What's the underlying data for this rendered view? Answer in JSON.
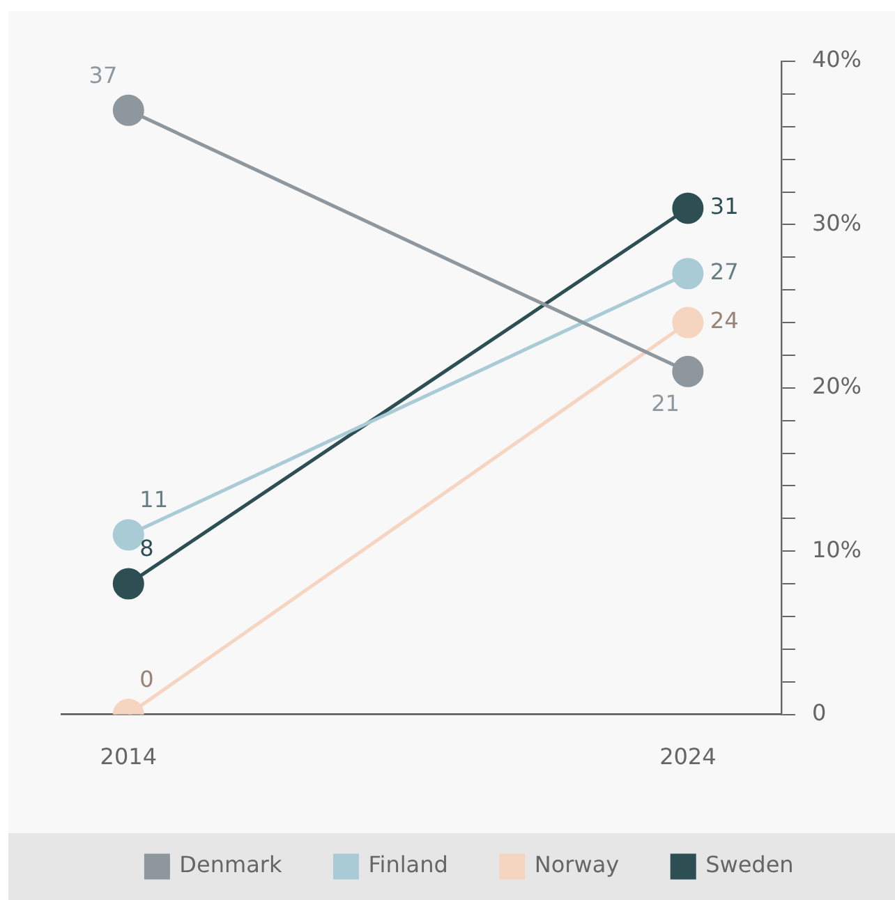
{
  "chart_data": {
    "type": "line",
    "categories": [
      "2014",
      "2024"
    ],
    "series": [
      {
        "name": "Denmark",
        "color": "#8d979d",
        "values": [
          37,
          21
        ]
      },
      {
        "name": "Finland",
        "color": "#a8cbd6",
        "values": [
          11,
          27
        ]
      },
      {
        "name": "Norway",
        "color": "#f5d4c0",
        "values": [
          0,
          24
        ]
      },
      {
        "name": "Sweden",
        "color": "#2d4f54",
        "values": [
          8,
          31
        ]
      }
    ],
    "ylim": [
      0,
      40
    ],
    "yticks": [
      {
        "value": 0,
        "label": "0"
      },
      {
        "value": 2,
        "label": null
      },
      {
        "value": 4,
        "label": null
      },
      {
        "value": 6,
        "label": null
      },
      {
        "value": 8,
        "label": null
      },
      {
        "value": 10,
        "label": "10%"
      },
      {
        "value": 12,
        "label": null
      },
      {
        "value": 14,
        "label": null
      },
      {
        "value": 16,
        "label": null
      },
      {
        "value": 18,
        "label": null
      },
      {
        "value": 20,
        "label": "20%"
      },
      {
        "value": 22,
        "label": null
      },
      {
        "value": 24,
        "label": null
      },
      {
        "value": 26,
        "label": null
      },
      {
        "value": 28,
        "label": null
      },
      {
        "value": 30,
        "label": "30%"
      },
      {
        "value": 32,
        "label": null
      },
      {
        "value": 34,
        "label": null
      },
      {
        "value": 36,
        "label": null
      },
      {
        "value": 38,
        "label": null
      },
      {
        "value": 40,
        "label": "40%"
      }
    ],
    "data_labels": true,
    "grid": false,
    "legend": "bottom",
    "marker": "circle",
    "line_style": "solid"
  }
}
